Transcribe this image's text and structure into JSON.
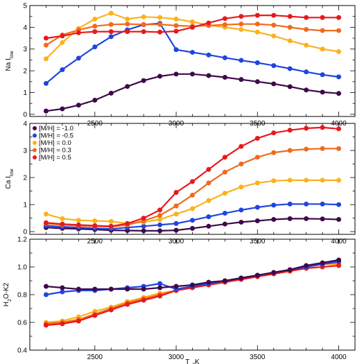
{
  "chart_data": [
    {
      "type": "line",
      "ylabel": "Na I",
      "ylabel_sub": "low",
      "xlim": [
        2100,
        4100
      ],
      "ylim": [
        -0.1,
        5
      ],
      "yticks": [
        0,
        1,
        2,
        3,
        4,
        5
      ],
      "xticks": [
        2500,
        3000,
        3500,
        4000
      ],
      "x": [
        2200,
        2300,
        2400,
        2500,
        2600,
        2700,
        2800,
        2900,
        3000,
        3100,
        3200,
        3300,
        3400,
        3500,
        3600,
        3700,
        3800,
        3900,
        4000
      ],
      "series": [
        {
          "key": "m10",
          "color": "#3d0a4a",
          "values": [
            0.15,
            0.25,
            0.42,
            0.65,
            0.97,
            1.28,
            1.55,
            1.75,
            1.85,
            1.85,
            1.78,
            1.7,
            1.6,
            1.5,
            1.4,
            1.27,
            1.12,
            1.02,
            0.96
          ]
        },
        {
          "key": "m05",
          "color": "#1f44e0",
          "values": [
            1.42,
            2.05,
            2.58,
            3.1,
            3.57,
            3.88,
            4.12,
            4.18,
            2.97,
            2.85,
            2.73,
            2.6,
            2.48,
            2.37,
            2.24,
            2.1,
            1.95,
            1.82,
            1.72
          ]
        },
        {
          "key": "p00",
          "color": "#fbb21a",
          "values": [
            2.55,
            3.3,
            3.95,
            4.38,
            4.65,
            4.38,
            4.48,
            4.45,
            4.38,
            4.25,
            4.1,
            4.0,
            3.9,
            3.78,
            3.6,
            3.38,
            3.18,
            3.0,
            2.88
          ]
        },
        {
          "key": "p03",
          "color": "#f06a1e",
          "values": [
            3.18,
            3.65,
            3.88,
            4.05,
            4.13,
            4.15,
            4.13,
            4.13,
            4.08,
            4.05,
            4.08,
            4.12,
            4.15,
            4.15,
            4.1,
            4.0,
            3.9,
            3.85,
            3.85
          ]
        },
        {
          "key": "p05",
          "color": "#e8191c",
          "values": [
            3.5,
            3.6,
            3.75,
            3.8,
            3.8,
            3.8,
            3.8,
            3.78,
            3.82,
            4.0,
            4.2,
            4.4,
            4.5,
            4.55,
            4.55,
            4.5,
            4.45,
            4.45,
            4.45
          ]
        }
      ]
    },
    {
      "type": "line",
      "ylabel": "Ca I",
      "ylabel_sub": "low",
      "xlim": [
        2100,
        4100
      ],
      "ylim": [
        -0.1,
        4
      ],
      "yticks": [
        0,
        1,
        2,
        3,
        4
      ],
      "xticks": [
        2500,
        3000,
        3500,
        4000
      ],
      "x": [
        2200,
        2300,
        2400,
        2500,
        2600,
        2700,
        2800,
        2900,
        3000,
        3100,
        3200,
        3300,
        3400,
        3500,
        3600,
        3700,
        3800,
        3900,
        4000
      ],
      "series": [
        {
          "key": "m10",
          "color": "#3d0a4a",
          "values": [
            0.15,
            0.12,
            0.1,
            0.08,
            0.05,
            0.04,
            0.03,
            0.03,
            0.05,
            0.12,
            0.2,
            0.28,
            0.35,
            0.4,
            0.45,
            0.48,
            0.48,
            0.47,
            0.45
          ]
        },
        {
          "key": "m05",
          "color": "#1f44e0",
          "values": [
            0.22,
            0.18,
            0.15,
            0.12,
            0.1,
            0.15,
            0.2,
            0.25,
            0.3,
            0.42,
            0.55,
            0.68,
            0.8,
            0.9,
            0.98,
            1.02,
            1.02,
            1.02,
            1.0
          ]
        },
        {
          "key": "p00",
          "color": "#fbb21a",
          "values": [
            0.65,
            0.48,
            0.42,
            0.4,
            0.38,
            0.3,
            0.35,
            0.45,
            0.65,
            0.85,
            1.15,
            1.42,
            1.65,
            1.8,
            1.88,
            1.9,
            1.9,
            1.9,
            1.9
          ]
        },
        {
          "key": "p03",
          "color": "#f06a1e",
          "values": [
            0.3,
            0.25,
            0.22,
            0.2,
            0.18,
            0.25,
            0.4,
            0.6,
            0.95,
            1.35,
            1.8,
            2.2,
            2.5,
            2.75,
            2.92,
            3.0,
            3.05,
            3.07,
            3.07
          ]
        },
        {
          "key": "p05",
          "color": "#e8191c",
          "values": [
            0.33,
            0.28,
            0.25,
            0.22,
            0.2,
            0.3,
            0.5,
            0.8,
            1.45,
            1.85,
            2.3,
            2.75,
            3.15,
            3.45,
            3.65,
            3.75,
            3.82,
            3.85,
            3.8
          ]
        }
      ],
      "legend": {
        "position": "top-left",
        "entries": [
          {
            "key": "m10",
            "label": "[M/H] = -1.0",
            "color": "#3d0a4a"
          },
          {
            "key": "m05",
            "label": "[M/H] = -0.5",
            "color": "#1f44e0"
          },
          {
            "key": "p00",
            "label": "[M/H] = 0.0",
            "color": "#fbb21a"
          },
          {
            "key": "p03",
            "label": "[M/H] = 0.3",
            "color": "#f06a1e"
          },
          {
            "key": "p05",
            "label": "[M/H] = 0.5",
            "color": "#e8191c"
          }
        ]
      }
    },
    {
      "type": "line",
      "ylabel": "H",
      "ylabel_sub": "2",
      "ylabel_rest": "O-K2",
      "xlabel": "T",
      "xlabel_sub": "eff",
      "xlabel_rest": "K",
      "xlim": [
        2100,
        4100
      ],
      "ylim": [
        0.4,
        1.2
      ],
      "yticks": [
        0.4,
        0.6,
        0.8,
        1.0,
        1.2
      ],
      "ytick_labels": [
        "0.4",
        "0.6",
        "0.8",
        "1.0",
        "1.2"
      ],
      "xticks": [
        2500,
        3000,
        3500,
        4000
      ],
      "x": [
        2200,
        2300,
        2400,
        2500,
        2600,
        2700,
        2800,
        2900,
        3000,
        3100,
        3200,
        3300,
        3400,
        3500,
        3600,
        3700,
        3800,
        3900,
        4000
      ],
      "series": [
        {
          "key": "p00",
          "color": "#fbb21a",
          "values": [
            0.6,
            0.61,
            0.64,
            0.68,
            0.71,
            0.75,
            0.78,
            0.81,
            0.83,
            0.86,
            0.88,
            0.9,
            0.92,
            0.94,
            0.96,
            0.98,
            1.0,
            1.02,
            1.02
          ]
        },
        {
          "key": "p03",
          "color": "#f06a1e",
          "values": [
            0.59,
            0.6,
            0.62,
            0.66,
            0.7,
            0.74,
            0.77,
            0.8,
            0.83,
            0.86,
            0.88,
            0.9,
            0.92,
            0.94,
            0.96,
            0.98,
            1.0,
            1.02,
            1.03
          ]
        },
        {
          "key": "p05",
          "color": "#e8191c",
          "values": [
            0.58,
            0.59,
            0.61,
            0.65,
            0.69,
            0.73,
            0.76,
            0.79,
            0.83,
            0.85,
            0.87,
            0.89,
            0.91,
            0.93,
            0.95,
            0.97,
            0.99,
            1.0,
            1.01
          ]
        },
        {
          "key": "m05",
          "color": "#1f44e0",
          "values": [
            0.8,
            0.82,
            0.83,
            0.83,
            0.84,
            0.85,
            0.86,
            0.88,
            0.84,
            0.86,
            0.88,
            0.9,
            0.92,
            0.94,
            0.96,
            0.98,
            1.0,
            1.02,
            1.04
          ]
        },
        {
          "key": "m10",
          "color": "#3d0a4a",
          "values": [
            0.86,
            0.85,
            0.84,
            0.84,
            0.84,
            0.84,
            0.84,
            0.85,
            0.86,
            0.87,
            0.89,
            0.9,
            0.92,
            0.94,
            0.96,
            0.98,
            1.01,
            1.03,
            1.05
          ]
        }
      ]
    }
  ]
}
